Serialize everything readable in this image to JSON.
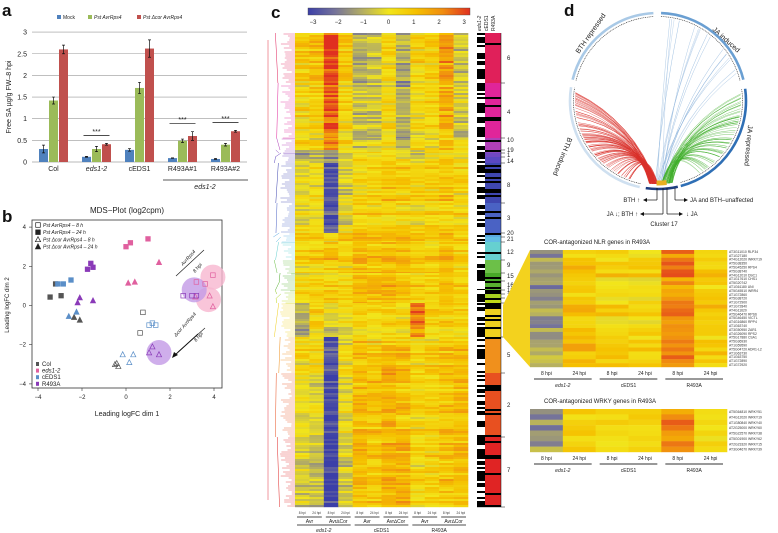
{
  "panel_labels": {
    "a": "a",
    "b": "b",
    "c": "c",
    "d": "d"
  },
  "chart_data": [
    {
      "type": "bar",
      "title": "",
      "ylabel": "Free SA µg/g FW–8 hpi",
      "xlabel": "",
      "ylim": [
        0,
        3
      ],
      "yticks": [
        "0",
        "0.5",
        "1",
        "1.5",
        "2",
        "2.5",
        "3"
      ],
      "categories": [
        "Col",
        "eds1-2",
        "cEDS1",
        "R493A#1",
        "R493A#2"
      ],
      "group_label": "eds1-2",
      "legend_placement": "top",
      "series": [
        {
          "name": "Mock",
          "color": "#4f81bd",
          "values": [
            0.3,
            0.12,
            0.28,
            0.09,
            0.07
          ],
          "errors": [
            0.09,
            0.01,
            0.03,
            0.005,
            0.01
          ]
        },
        {
          "name": "Pst AvrRps4",
          "color": "#9bbb59",
          "values": [
            1.42,
            0.3,
            1.71,
            0.49,
            0.4
          ],
          "errors": [
            0.08,
            0.06,
            0.13,
            0.04,
            0.03
          ]
        },
        {
          "name": "Pst Δcor AvrRps4",
          "color": "#c0504d",
          "values": [
            2.6,
            0.41,
            2.62,
            0.6,
            0.71
          ],
          "errors": [
            0.1,
            0.02,
            0.2,
            0.1,
            0.02
          ]
        }
      ],
      "significance": [
        {
          "category": "eds1-2",
          "label": "***"
        },
        {
          "category": "R493A#1",
          "label": "***"
        },
        {
          "category": "R493A#2",
          "label": "***"
        }
      ]
    },
    {
      "type": "scatter",
      "title": "MDS−Plot (log2cpm)",
      "xlabel": "Leading logFC dim 1",
      "ylabel": "Leading logFC dim 2",
      "xlim": [
        -4.3,
        4.3
      ],
      "ylim": [
        -4.2,
        4.4
      ],
      "xticks": [
        "−4",
        "−2",
        "0",
        "2",
        "4"
      ],
      "xtick_values": [
        -4,
        -2,
        0,
        2,
        4
      ],
      "yticks": [
        "−4",
        "−2",
        "0",
        "2",
        "4"
      ],
      "ytick_values": [
        -4,
        -2,
        0,
        2,
        4
      ],
      "marker_legend": [
        {
          "label": "Pst AvrRps4 – 8 h",
          "marker": "open-square"
        },
        {
          "label": "Pst AvrRps4 – 24 h",
          "marker": "filled-square"
        },
        {
          "label": "Pst Δcor AvrRps4 – 8 h",
          "marker": "open-triangle"
        },
        {
          "label": "Pst Δcor AvrRps4 – 24 h",
          "marker": "filled-triangle"
        }
      ],
      "color_legend": [
        {
          "label": "Col",
          "color": "#555555"
        },
        {
          "label": "eds1-2",
          "color": "#e0609f"
        },
        {
          "label": "cEDS1",
          "color": "#5b8fc8"
        },
        {
          "label": "R493A",
          "color": "#8a3ab8"
        }
      ],
      "groups": [
        {
          "genotype": "Col",
          "color": "#555555",
          "points": {
            "filled-square": [
              [
                -3.45,
                0.43
              ],
              [
                -3.2,
                1.1
              ],
              [
                -2.95,
                0.5
              ]
            ],
            "open-square": [
              [
                0.77,
                -0.35
              ],
              [
                0.64,
                -1.4
              ]
            ],
            "filled-triangle": [
              [
                -2.36,
                -0.6
              ],
              [
                -2.1,
                -0.74
              ]
            ],
            "open-triangle": [
              [
                -0.5,
                -3.0
              ],
              [
                -0.35,
                -3.1
              ],
              [
                -0.42,
                -2.95
              ]
            ]
          }
        },
        {
          "genotype": "eds1-2",
          "color": "#e0609f",
          "points": {
            "filled-square": [
              [
                0.0,
                3.0
              ],
              [
                0.2,
                3.2
              ],
              [
                1.0,
                3.4
              ]
            ],
            "open-square": [
              [
                3.2,
                1.2
              ],
              [
                3.6,
                1.1
              ],
              [
                3.95,
                1.55
              ]
            ],
            "filled-triangle": [
              [
                1.5,
                2.2
              ],
              [
                0.1,
                1.15
              ],
              [
                0.4,
                1.2
              ]
            ],
            "open-triangle": [
              [
                3.8,
                0.5
              ],
              [
                3.15,
                0.45
              ],
              [
                3.95,
                -0.05
              ]
            ]
          }
        },
        {
          "genotype": "cEDS1",
          "color": "#5b8fc8",
          "points": {
            "filled-square": [
              [
                -3.1,
                1.1
              ],
              [
                -2.85,
                1.1
              ],
              [
                -2.5,
                1.3
              ]
            ],
            "open-square": [
              [
                1.05,
                -1.0
              ],
              [
                1.2,
                -0.9
              ],
              [
                1.35,
                -1.0
              ]
            ],
            "filled-triangle": [
              [
                -2.6,
                -0.55
              ],
              [
                -2.25,
                -0.33
              ]
            ],
            "open-triangle": [
              [
                -0.15,
                -2.5
              ],
              [
                0.33,
                -2.5
              ],
              [
                0.15,
                -2.9
              ]
            ]
          }
        },
        {
          "genotype": "R493A",
          "color": "#8a3ab8",
          "points": {
            "filled-square": [
              [
                -1.75,
                1.85
              ],
              [
                -1.6,
                2.15
              ],
              [
                -1.5,
                1.95
              ]
            ],
            "open-square": [
              [
                2.6,
                0.5
              ],
              [
                3.0,
                0.5
              ],
              [
                3.2,
                0.5
              ]
            ],
            "filled-triangle": [
              [
                -1.5,
                0.25
              ],
              [
                -2.1,
                0.4
              ],
              [
                -2.2,
                0.15
              ]
            ],
            "open-triangle": [
              [
                1.2,
                -2.1
              ],
              [
                1.05,
                -2.4
              ],
              [
                1.5,
                -2.5
              ]
            ]
          }
        }
      ],
      "highlights": [
        {
          "x": 3.95,
          "y": 1.45,
          "color": "#f7b6cf"
        },
        {
          "x": 3.75,
          "y": 0.3,
          "color": "#f7b6cf"
        },
        {
          "x": 3.1,
          "y": 0.8,
          "color": "#c39ae6"
        },
        {
          "x": 1.5,
          "y": -2.4,
          "color": "#c39ae6"
        }
      ],
      "annotations": {
        "avr": "AvrRps4",
        "avr_time": "8 hpi",
        "dcor": "Δcor AvrRps4",
        "dcor_time": "8 hpi"
      }
    },
    {
      "type": "heatmap",
      "colorbar": {
        "min": -3,
        "max": 3,
        "ticks": [
          "−3",
          "−2",
          "−1",
          "0",
          "1",
          "2",
          "3"
        ],
        "colors": [
          "#3b3fa8",
          "#75739a",
          "#b3ad64",
          "#f2e51a",
          "#f5c000",
          "#f08c10",
          "#e03020"
        ]
      },
      "top_labels": [
        "eds1-2",
        "cEDS1",
        "R493A"
      ],
      "columns": [
        "8 hpi",
        "24 hpi",
        "8 hpi",
        "24 hpi",
        "8 hpi",
        "24 hpi",
        "8 hpi",
        "24 hpi",
        "8 hpi",
        "24 hpi",
        "8 hpi",
        "24 hpi"
      ],
      "treatments": [
        "Avr",
        "Avr∆Cor",
        "Avr",
        "Avr∆Cor",
        "Avr",
        "Avr∆Cor"
      ],
      "genotypes": [
        "eds1-2",
        "cEDS1",
        "R493A"
      ],
      "clusters": [
        {
          "id": "6",
          "color": "#e0205a",
          "profile": [
            0.5,
            0.8,
            2.8,
            0.6,
            -1.2,
            -0.8,
            0.2,
            -1.3,
            0.3,
            0.5,
            1.5,
            -0.8
          ]
        },
        {
          "id": "4",
          "color": "#e0259a",
          "profile": [
            0.3,
            0.5,
            2.5,
            0.2,
            -0.8,
            -0.5,
            0.3,
            -1.0,
            0.2,
            0.4,
            1.2,
            -0.5
          ]
        },
        {
          "id": "10",
          "color": "#b040b8",
          "profile": [
            0.5,
            0.3,
            2.0,
            0.5,
            -0.5,
            -0.3,
            0.5,
            -0.5,
            0.5,
            0.3,
            1.0,
            0.0
          ]
        },
        {
          "id": "19",
          "color": "#8a48c0",
          "profile": [
            -1,
            -1,
            -1.5,
            -0.5,
            0,
            0,
            0.2,
            0,
            -0.5,
            0,
            0,
            0
          ]
        },
        {
          "id": "1",
          "color": "#7048c0",
          "profile": [
            -1,
            -0.8,
            -1.5,
            -0.5,
            0,
            0,
            0.2,
            0,
            -0.5,
            0,
            0,
            0
          ]
        },
        {
          "id": "14",
          "color": "#5a48c0",
          "profile": [
            -0.8,
            -0.8,
            -1.8,
            -0.5,
            0,
            0.2,
            0.2,
            0,
            -0.5,
            0,
            0.2,
            0
          ]
        },
        {
          "id": "8",
          "color": "#3f47b0",
          "profile": [
            -0.2,
            0,
            -2.8,
            -0.5,
            0.3,
            0.5,
            0.8,
            0.6,
            0.5,
            0.5,
            0.8,
            0.4
          ]
        },
        {
          "id": "3",
          "color": "#4a62c4",
          "profile": [
            0,
            0.2,
            -2.5,
            -0.2,
            0.5,
            0.6,
            0.5,
            0.5,
            0.3,
            0.5,
            0.6,
            0.5
          ]
        },
        {
          "id": "20",
          "color": "#5aa8e0",
          "profile": [
            0.3,
            0.5,
            0.2,
            0.5,
            1,
            0.8,
            1,
            0.8,
            0.5,
            0.5,
            0.8,
            0.5
          ]
        },
        {
          "id": "21",
          "color": "#62bce4",
          "profile": [
            0.3,
            0.5,
            0.3,
            0.5,
            1,
            0.8,
            1,
            0.8,
            0.5,
            0.5,
            0.8,
            0.5
          ]
        },
        {
          "id": "12",
          "color": "#66d0d0",
          "profile": [
            0.5,
            0.6,
            1,
            0.5,
            1.2,
            1,
            1.2,
            0.8,
            0.6,
            0.8,
            1,
            0.7
          ]
        },
        {
          "id": "9",
          "color": "#6cc048",
          "profile": [
            0.3,
            0.5,
            0.5,
            0.4,
            1,
            0.8,
            1,
            1,
            0.5,
            0.6,
            1,
            0.5
          ]
        },
        {
          "id": "15",
          "color": "#48a828",
          "profile": [
            0.2,
            0.4,
            0.5,
            0.3,
            1.2,
            1,
            1.2,
            0.8,
            0.6,
            0.5,
            1,
            0.6
          ]
        },
        {
          "id": "16",
          "color": "#58b030",
          "profile": [
            0.2,
            0.4,
            0.6,
            0.3,
            1.1,
            1,
            1.2,
            0.9,
            0.6,
            0.5,
            1,
            0.6
          ]
        },
        {
          "id": "18",
          "color": "#90c828",
          "profile": [
            0.3,
            0.6,
            0.8,
            0.5,
            1,
            0.8,
            1.3,
            1,
            0.5,
            0.6,
            1,
            0.5
          ]
        },
        {
          "id": "13",
          "color": "#a8d020",
          "profile": [
            0.3,
            0.6,
            0.8,
            0.5,
            1,
            0.8,
            1.3,
            1,
            0.5,
            0.6,
            1,
            0.5
          ]
        },
        {
          "id": "11",
          "color": "#c0d818",
          "profile": [
            0.3,
            0.6,
            0.8,
            0.5,
            1,
            0.8,
            1.3,
            1,
            0.5,
            0.6,
            1,
            0.5
          ]
        },
        {
          "id": "17",
          "color": "#f0d020",
          "profile": [
            -1,
            0.5,
            -0.3,
            0,
            0.4,
            0.3,
            0.5,
            0.3,
            2,
            0.5,
            0.6,
            0.4
          ]
        },
        {
          "id": "5",
          "color": "#f0901c",
          "profile": [
            0.2,
            0.3,
            -2.5,
            0,
            0.8,
            0.6,
            1,
            0.8,
            0.3,
            0.4,
            0.8,
            0.8
          ]
        },
        {
          "id": "2",
          "color": "#e85020",
          "profile": [
            0,
            -0.3,
            -2.8,
            -0.2,
            1,
            0.8,
            1.2,
            1,
            0.4,
            0.5,
            0.8,
            1
          ]
        },
        {
          "id": "7",
          "color": "#e02424",
          "profile": [
            -0.5,
            -0.8,
            -3,
            -0.5,
            1,
            0.8,
            1.2,
            1.2,
            0.3,
            0.5,
            0.8,
            1
          ]
        }
      ]
    },
    {
      "type": "chord",
      "sectors": [
        {
          "label": "JA induced",
          "color": "#6a9fd2"
        },
        {
          "label": "JA repressed",
          "color": "#2f6fb5"
        },
        {
          "label": "BTH induced",
          "color": "#cfe0f0"
        },
        {
          "label": "BTH repressed",
          "color": "#a9c9e6"
        }
      ],
      "chord_colors": {
        "BTH induced": "#d9302a",
        "JA repressed": "#3fae2a",
        "JA induced": "#8fb5dc"
      },
      "bottom_labels": {
        "bth_up": "BTH ↑",
        "unaffected": "JA and BTH–unaffected",
        "ja_down_bth_up": "JA ↓; BTH ↑",
        "ja_down": "↓ JA",
        "cluster": "Cluster 17"
      }
    },
    {
      "type": "heatmap",
      "title": "COR-antagonized NLR genes in R493A",
      "columns": [
        "8 hpi",
        "24 hpi",
        "8 hpi",
        "24 hpi",
        "8 hpi",
        "24 hpi"
      ],
      "genotypes": [
        "eds1-2",
        "cEDS1",
        "R493A"
      ],
      "profile": [
        -1.3,
        0.8,
        0.5,
        0.4,
        2.0,
        0.5
      ],
      "genes": [
        "AT3G11010 RLP34",
        "AT1G27180",
        "AT4G12020 WRKY19",
        "AT5G38350",
        "AT5G45250 RPS4",
        "AT5G38740",
        "AT4G12010 DSC1",
        "AT1G17610 CHS1",
        "AT5G20742",
        "AT1G61180 UNI",
        "AT5G45510 WRR4",
        "AT1G72860",
        "AT5G38720",
        "AT1G72900",
        "AT1G72840",
        "AT4G11620",
        "AT5G46470 RPS6",
        "AT5G46450 VICTL",
        "AT4G16860 RPP4",
        "AT1G63740",
        "AT3G50950 ZAR1",
        "AT4G26090 RPS2",
        "AT5G17880 CSA1",
        "AT5G36930",
        "AT1G59590",
        "AT5G04720 ADR1-L2",
        "AT1G63730",
        "AT1G63750",
        "AT1G72890",
        "AT1G72920"
      ]
    },
    {
      "type": "heatmap",
      "title": "COR-antagonized WRKY genes in R493A",
      "columns": [
        "8 hpi",
        "24 hpi",
        "8 hpi",
        "24 hpi",
        "8 hpi",
        "24 hpi"
      ],
      "genotypes": [
        "eds1-2",
        "cEDS1",
        "R493A"
      ],
      "profile": [
        -1.3,
        0.6,
        0.4,
        0.4,
        2.0,
        0.5
      ],
      "genes": [
        "AT5G64810 WRKY51",
        "AT4G12020 WRKY19",
        "AT1G80840 WRKY40",
        "AT2G25000 WRKY60",
        "AT5G22570 WRKY38",
        "AT5G01900 WRKY62",
        "AT2G23320 WRKY15",
        "AT3G04670 WRKY39"
      ]
    }
  ]
}
